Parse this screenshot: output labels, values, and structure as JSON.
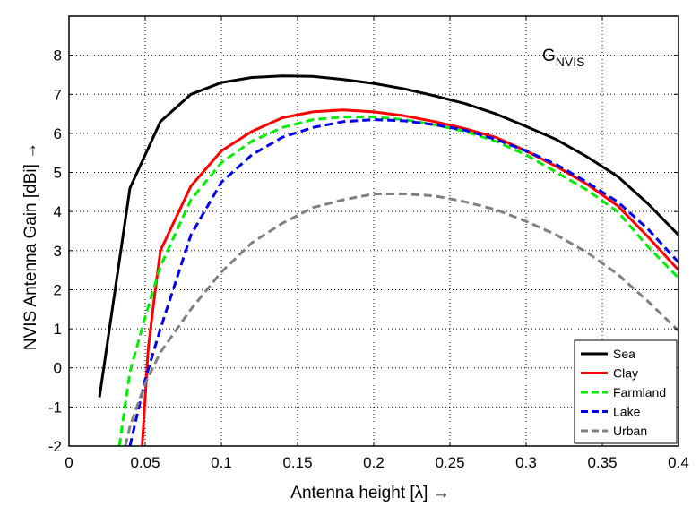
{
  "chart_data": {
    "type": "line",
    "xlabel": "Antenna height [λ] →",
    "ylabel": "NVIS Antenna Gain [dBi] →",
    "annotation": {
      "main": "G",
      "sub": "NVIS"
    },
    "xlim": [
      0,
      0.4
    ],
    "ylim": [
      -2,
      9
    ],
    "xticks": [
      0,
      0.05,
      0.1,
      0.15,
      0.2,
      0.25,
      0.3,
      0.35,
      0.4
    ],
    "xtick_labels": [
      "0",
      "0.05",
      "0.1",
      "0.15",
      "0.2",
      "0.25",
      "0.3",
      "0.35",
      "0.4"
    ],
    "yticks": [
      -2,
      -1,
      0,
      1,
      2,
      3,
      4,
      5,
      6,
      7,
      8
    ],
    "ytick_labels": [
      "-2",
      "-1",
      "0",
      "1",
      "2",
      "3",
      "4",
      "5",
      "6",
      "7",
      "8"
    ],
    "grid": true,
    "legend_position": "bottom-right",
    "series": [
      {
        "name": "Sea",
        "color": "#000000",
        "dash": "solid",
        "x": [
          0.02,
          0.04,
          0.06,
          0.08,
          0.1,
          0.12,
          0.14,
          0.16,
          0.18,
          0.2,
          0.22,
          0.24,
          0.26,
          0.28,
          0.3,
          0.32,
          0.34,
          0.36,
          0.38,
          0.4
        ],
        "y": [
          -0.75,
          4.6,
          6.3,
          7.0,
          7.3,
          7.43,
          7.47,
          7.46,
          7.38,
          7.28,
          7.14,
          6.96,
          6.76,
          6.5,
          6.18,
          5.84,
          5.4,
          4.9,
          4.2,
          3.4
        ]
      },
      {
        "name": "Clay",
        "color": "#ff0000",
        "dash": "solid",
        "x": [
          0.048,
          0.052,
          0.056,
          0.06,
          0.08,
          0.1,
          0.12,
          0.14,
          0.16,
          0.18,
          0.2,
          0.22,
          0.24,
          0.26,
          0.28,
          0.3,
          0.32,
          0.34,
          0.36,
          0.38,
          0.4
        ],
        "y": [
          -2.0,
          0.5,
          1.8,
          3.0,
          4.65,
          5.55,
          6.05,
          6.4,
          6.55,
          6.6,
          6.55,
          6.45,
          6.3,
          6.12,
          5.9,
          5.55,
          5.15,
          4.7,
          4.15,
          3.35,
          2.5
        ]
      },
      {
        "name": "Farmland",
        "color": "#00ee00",
        "dash": "dashed",
        "x": [
          0.033,
          0.04,
          0.05,
          0.06,
          0.08,
          0.1,
          0.12,
          0.14,
          0.16,
          0.18,
          0.2,
          0.22,
          0.24,
          0.26,
          0.28,
          0.3,
          0.32,
          0.34,
          0.36,
          0.38,
          0.4
        ],
        "y": [
          -2.0,
          -0.1,
          1.3,
          2.6,
          4.3,
          5.25,
          5.8,
          6.15,
          6.35,
          6.42,
          6.42,
          6.35,
          6.22,
          6.05,
          5.8,
          5.45,
          5.0,
          4.55,
          4.0,
          3.1,
          2.3
        ]
      },
      {
        "name": "Lake",
        "color": "#0000ee",
        "dash": "dashed",
        "x": [
          0.04,
          0.05,
          0.06,
          0.08,
          0.1,
          0.12,
          0.14,
          0.16,
          0.18,
          0.2,
          0.22,
          0.24,
          0.26,
          0.28,
          0.3,
          0.32,
          0.34,
          0.36,
          0.38,
          0.4
        ],
        "y": [
          -2.0,
          -0.3,
          1.0,
          3.4,
          4.75,
          5.45,
          5.9,
          6.15,
          6.3,
          6.35,
          6.32,
          6.22,
          6.08,
          5.85,
          5.55,
          5.2,
          4.75,
          4.25,
          3.55,
          2.7
        ]
      },
      {
        "name": "Urban",
        "color": "#808080",
        "dash": "dashed",
        "x": [
          0.037,
          0.04,
          0.05,
          0.06,
          0.08,
          0.1,
          0.12,
          0.14,
          0.16,
          0.18,
          0.2,
          0.22,
          0.24,
          0.26,
          0.28,
          0.3,
          0.32,
          0.34,
          0.36,
          0.38,
          0.4
        ],
        "y": [
          -2.0,
          -1.5,
          -0.4,
          0.4,
          1.5,
          2.45,
          3.2,
          3.7,
          4.1,
          4.3,
          4.45,
          4.45,
          4.4,
          4.25,
          4.05,
          3.75,
          3.4,
          2.95,
          2.4,
          1.7,
          0.95
        ]
      }
    ]
  }
}
